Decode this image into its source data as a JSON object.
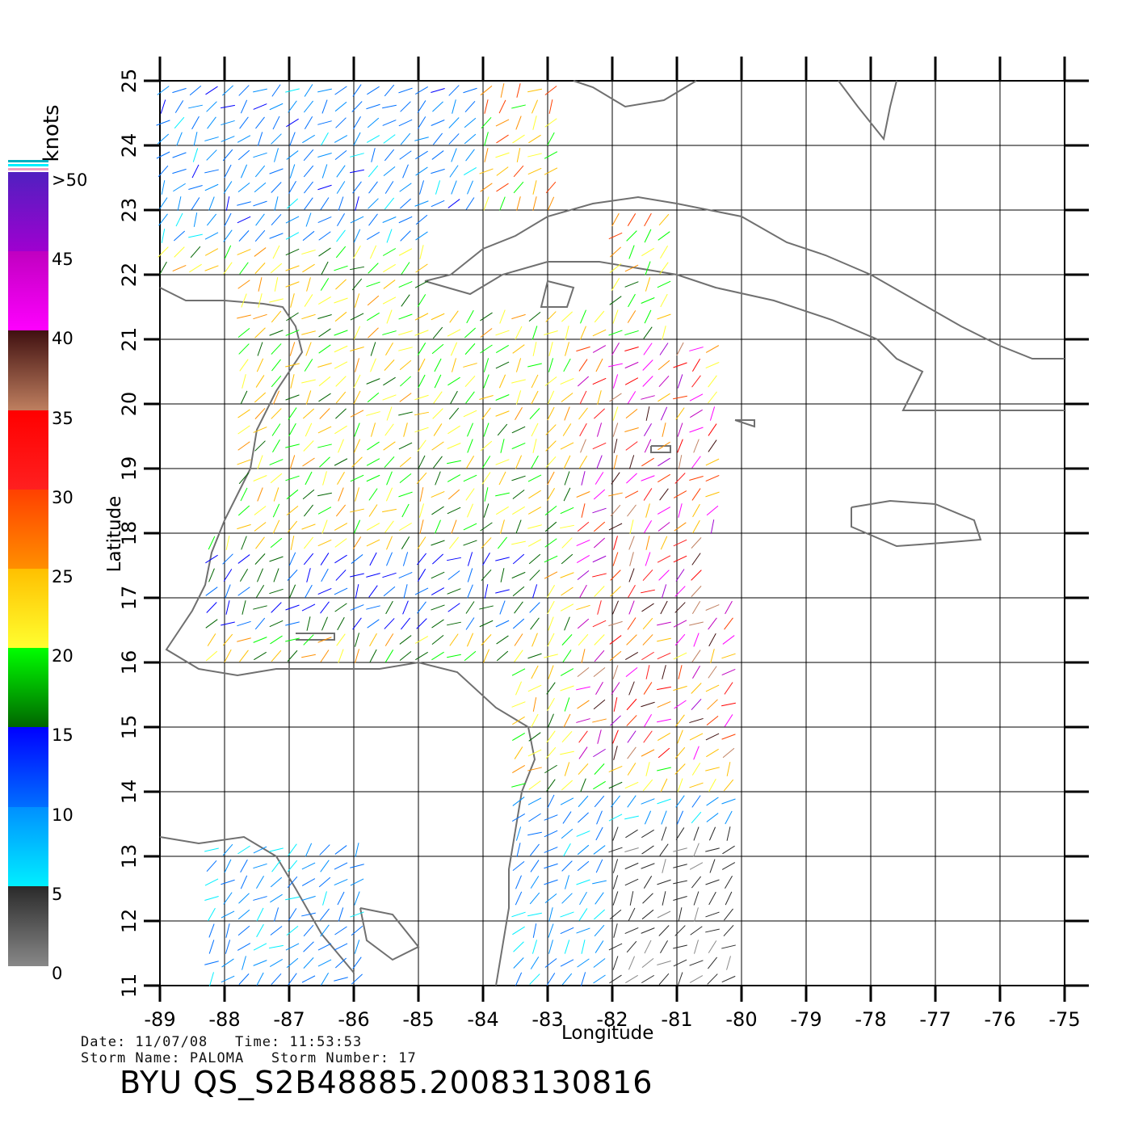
{
  "footer": {
    "date_line": "Date: 11/07/08   Time: 11:53:53",
    "storm_line": "Storm Name: PALOMA   Storm Number: 17",
    "product_id": "BYU QS_S2B48885.20083130816"
  },
  "axes": {
    "x_title": "Longitude",
    "y_title": "Latitude",
    "x_ticks": [
      "-89",
      "-88",
      "-87",
      "-86",
      "-85",
      "-84",
      "-83",
      "-82",
      "-81",
      "-80",
      "-79",
      "-78",
      "-77",
      "-76",
      "-75"
    ],
    "y_ticks": [
      "11",
      "12",
      "13",
      "14",
      "15",
      "16",
      "17",
      "18",
      "19",
      "20",
      "21",
      "22",
      "23",
      "24",
      "25"
    ],
    "x_range": [
      -89,
      -75
    ],
    "y_range": [
      11,
      25
    ],
    "grid": true
  },
  "colorbar": {
    "title": "knots",
    "labels": [
      ">50",
      "45",
      "40",
      "35",
      "30",
      "25",
      "20",
      "15",
      "10",
      "5",
      "0"
    ],
    "bins": [
      {
        "from": 0,
        "to": 5,
        "colors": [
          "#888888",
          "#2a2a2a"
        ]
      },
      {
        "from": 5,
        "to": 10,
        "colors": [
          "#00f0ff",
          "#0090ff"
        ]
      },
      {
        "from": 10,
        "to": 15,
        "colors": [
          "#0070ff",
          "#0000ff"
        ]
      },
      {
        "from": 15,
        "to": 20,
        "colors": [
          "#006400",
          "#00ff00"
        ]
      },
      {
        "from": 20,
        "to": 25,
        "colors": [
          "#ffff30",
          "#ffc000"
        ]
      },
      {
        "from": 25,
        "to": 30,
        "colors": [
          "#ff9000",
          "#ff4000"
        ]
      },
      {
        "from": 30,
        "to": 35,
        "colors": [
          "#ff2020",
          "#ff0000"
        ]
      },
      {
        "from": 35,
        "to": 40,
        "colors": [
          "#c08060",
          "#401010"
        ]
      },
      {
        "from": 40,
        "to": 45,
        "colors": [
          "#ff00ff",
          "#c000c0"
        ]
      },
      {
        "from": 45,
        "to": 50,
        "colors": [
          "#a000d0",
          "#5020c0"
        ]
      }
    ]
  },
  "colors": {
    "coastline": "#707070",
    "grid": "#000000"
  }
}
